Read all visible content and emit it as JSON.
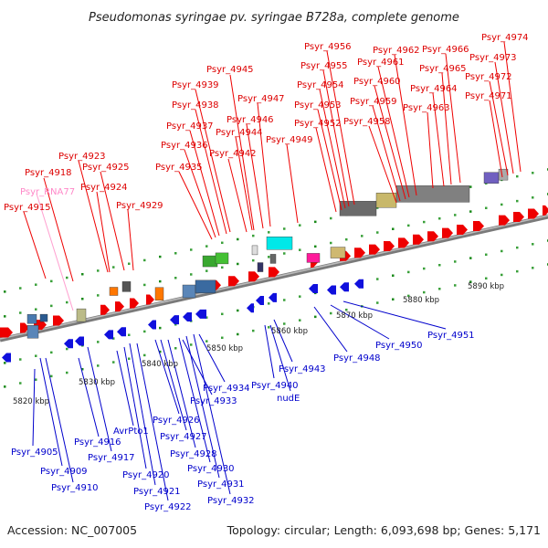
{
  "title": "Pseudomonas syringae pv. syringae B728a, complete genome",
  "footer": {
    "accession": "Accession: NC_007005",
    "summary": "Topology: circular; Length: 6,093,698 bp; Genes: 5,171"
  },
  "scale_labels": [
    "5820 kbp",
    "5830 kbp",
    "5840 kbp",
    "5850 kbp",
    "5860 kbp",
    "5870 kbp",
    "5880 kbp",
    "5890 kbp"
  ],
  "top_labels": [
    {
      "text": "Psyr_4915",
      "color": "#dd0000"
    },
    {
      "text": "Psyr_RNA77",
      "color": "#ff88c8"
    },
    {
      "text": "Psyr_4918",
      "color": "#dd0000"
    },
    {
      "text": "Psyr_4923",
      "color": "#dd0000"
    },
    {
      "text": "Psyr_4925",
      "color": "#dd0000"
    },
    {
      "text": "Psyr_4924",
      "color": "#dd0000"
    },
    {
      "text": "Psyr_4929",
      "color": "#dd0000"
    },
    {
      "text": "Psyr_4935",
      "color": "#dd0000"
    },
    {
      "text": "Psyr_4936",
      "color": "#dd0000"
    },
    {
      "text": "Psyr_4937",
      "color": "#dd0000"
    },
    {
      "text": "Psyr_4938",
      "color": "#dd0000"
    },
    {
      "text": "Psyr_4939",
      "color": "#dd0000"
    },
    {
      "text": "Psyr_4945",
      "color": "#dd0000"
    },
    {
      "text": "Psyr_4942",
      "color": "#dd0000"
    },
    {
      "text": "Psyr_4944",
      "color": "#dd0000"
    },
    {
      "text": "Psyr_4946",
      "color": "#dd0000"
    },
    {
      "text": "Psyr_4947",
      "color": "#dd0000"
    },
    {
      "text": "Psyr_4949",
      "color": "#dd0000"
    },
    {
      "text": "Psyr_4952",
      "color": "#dd0000"
    },
    {
      "text": "Psyr_4953",
      "color": "#dd0000"
    },
    {
      "text": "Psyr_4954",
      "color": "#dd0000"
    },
    {
      "text": "Psyr_4955",
      "color": "#dd0000"
    },
    {
      "text": "Psyr_4956",
      "color": "#dd0000"
    },
    {
      "text": "Psyr_4958",
      "color": "#dd0000"
    },
    {
      "text": "Psyr_4959",
      "color": "#dd0000"
    },
    {
      "text": "Psyr_4960",
      "color": "#dd0000"
    },
    {
      "text": "Psyr_4961",
      "color": "#dd0000"
    },
    {
      "text": "Psyr_4962",
      "color": "#dd0000"
    },
    {
      "text": "Psyr_4963",
      "color": "#dd0000"
    },
    {
      "text": "Psyr_4964",
      "color": "#dd0000"
    },
    {
      "text": "Psyr_4965",
      "color": "#dd0000"
    },
    {
      "text": "Psyr_4966",
      "color": "#dd0000"
    },
    {
      "text": "Psyr_4971",
      "color": "#dd0000"
    },
    {
      "text": "Psyr_4972",
      "color": "#dd0000"
    },
    {
      "text": "Psyr_4973",
      "color": "#dd0000"
    },
    {
      "text": "Psyr_4974",
      "color": "#dd0000"
    }
  ],
  "bottom_labels": [
    {
      "text": "Psyr_4905",
      "color": "#0000cc"
    },
    {
      "text": "Psyr_4909",
      "color": "#0000cc"
    },
    {
      "text": "Psyr_4910",
      "color": "#0000cc"
    },
    {
      "text": "Psyr_4916",
      "color": "#0000cc"
    },
    {
      "text": "Psyr_4917",
      "color": "#0000cc"
    },
    {
      "text": "AvrPto1",
      "color": "#0000cc"
    },
    {
      "text": "Psyr_4920",
      "color": "#0000cc"
    },
    {
      "text": "Psyr_4921",
      "color": "#0000cc"
    },
    {
      "text": "Psyr_4922",
      "color": "#0000cc"
    },
    {
      "text": "Psyr_4926",
      "color": "#0000cc"
    },
    {
      "text": "Psyr_4927",
      "color": "#0000cc"
    },
    {
      "text": "Psyr_4928",
      "color": "#0000cc"
    },
    {
      "text": "Psyr_4930",
      "color": "#0000cc"
    },
    {
      "text": "Psyr_4931",
      "color": "#0000cc"
    },
    {
      "text": "Psyr_4932",
      "color": "#0000cc"
    },
    {
      "text": "Psyr_4933",
      "color": "#0000cc"
    },
    {
      "text": "Psyr_4934",
      "color": "#0000cc"
    },
    {
      "text": "Psyr_4940",
      "color": "#0000cc"
    },
    {
      "text": "nudE",
      "color": "#0000cc"
    },
    {
      "text": "Psyr_4943",
      "color": "#0000cc"
    },
    {
      "text": "Psyr_4948",
      "color": "#0000cc"
    },
    {
      "text": "Psyr_4950",
      "color": "#0000cc"
    },
    {
      "text": "Psyr_4951",
      "color": "#0000cc"
    }
  ]
}
